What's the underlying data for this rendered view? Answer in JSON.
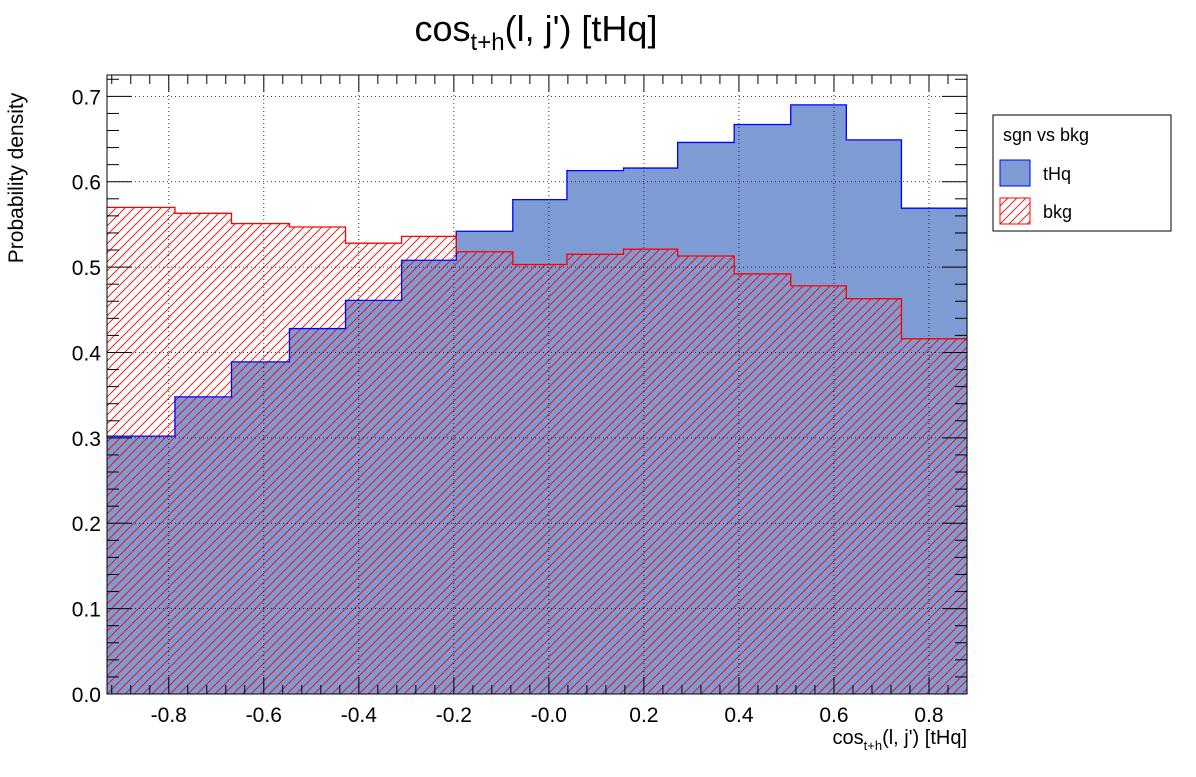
{
  "chart_data": {
    "type": "histogram",
    "title": {
      "main": "cos",
      "sub": "t+h",
      "rest": "(l, j') [tHq]"
    },
    "xlabel": {
      "main": "cos",
      "sub": "t+h",
      "rest": "(l, j') [tHq]"
    },
    "ylabel": "Probability density",
    "xlim": [
      -0.93,
      0.88
    ],
    "ylim": [
      0.0,
      0.725
    ],
    "grid": true,
    "x_ticks": [
      {
        "v": -0.8,
        "label": "-0.8"
      },
      {
        "v": -0.6,
        "label": "-0.6"
      },
      {
        "v": -0.4,
        "label": "-0.4"
      },
      {
        "v": -0.2,
        "label": "-0.2"
      },
      {
        "v": 0.0,
        "label": "-0.0"
      },
      {
        "v": 0.2,
        "label": "0.2"
      },
      {
        "v": 0.4,
        "label": "0.4"
      },
      {
        "v": 0.6,
        "label": "0.6"
      },
      {
        "v": 0.8,
        "label": "0.8"
      }
    ],
    "y_ticks": [
      {
        "v": 0.0,
        "label": "0.0"
      },
      {
        "v": 0.1,
        "label": "0.1"
      },
      {
        "v": 0.2,
        "label": "0.2"
      },
      {
        "v": 0.3,
        "label": "0.3"
      },
      {
        "v": 0.4,
        "label": "0.4"
      },
      {
        "v": 0.5,
        "label": "0.5"
      },
      {
        "v": 0.6,
        "label": "0.6"
      },
      {
        "v": 0.7,
        "label": "0.7"
      }
    ],
    "bin_edges": [
      -0.93,
      -0.787,
      -0.668,
      -0.546,
      -0.428,
      -0.31,
      -0.195,
      -0.076,
      0.038,
      0.157,
      0.271,
      0.39,
      0.509,
      0.626,
      0.742,
      0.88
    ],
    "series": [
      {
        "name": "tHq",
        "style": "fill",
        "color": "#7e9bd3",
        "line": "#0000ff",
        "values": [
          0.302,
          0.348,
          0.389,
          0.428,
          0.461,
          0.508,
          0.542,
          0.579,
          0.613,
          0.616,
          0.646,
          0.667,
          0.69,
          0.649,
          0.569,
          0.569
        ]
      },
      {
        "name": "bkg",
        "style": "hatch",
        "color": "#ff0000",
        "line": "#ff0000",
        "values": [
          0.57,
          0.563,
          0.551,
          0.547,
          0.528,
          0.536,
          0.518,
          0.503,
          0.515,
          0.521,
          0.513,
          0.492,
          0.478,
          0.463,
          0.416,
          0.416
        ]
      }
    ],
    "legend": {
      "title": "sgn vs bkg",
      "position": "top-right outside"
    }
  }
}
